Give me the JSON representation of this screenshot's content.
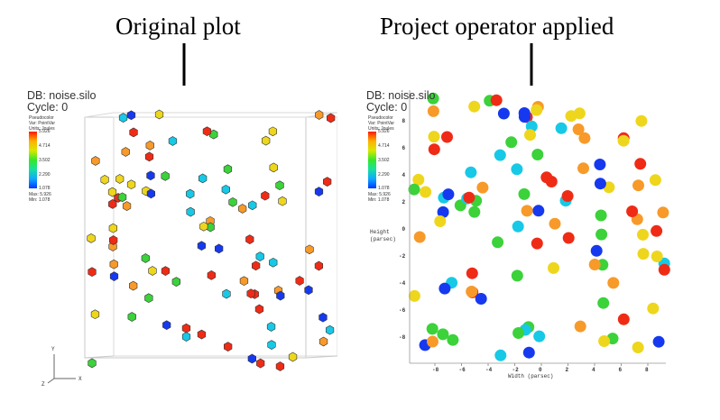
{
  "captions": {
    "left": "Original plot",
    "right": "Project operator applied"
  },
  "left_panel": {
    "db_label": "DB: noise.silo",
    "cycle_label": "Cycle: 0",
    "legend": {
      "title_lines": [
        "Pseudocolor",
        "Var: PointVar",
        "Units: Joules"
      ],
      "ticks": [
        "5.926",
        "4.714",
        "3.502",
        "2.290",
        "1.078"
      ],
      "max_label": "Max: 5.926",
      "min_label": "Min: 1.078"
    },
    "triad": {
      "y": "Y",
      "x": "X",
      "z": "Z"
    }
  },
  "right_panel": {
    "db_label": "DB: noise.silo",
    "cycle_label": "Cycle: 0",
    "legend": {
      "title_lines": [
        "Pseudocolor",
        "Var: PointVar",
        "Units: Joules"
      ],
      "ticks": [
        "5.926",
        "4.714",
        "3.502",
        "2.290",
        "1.078"
      ],
      "max_label": "Max: 5.926",
      "min_label": "Min: 1.078"
    },
    "xlabel": "Width (parsec)",
    "ylabel_lines": [
      "Height",
      "(parsec)"
    ],
    "xticks": [
      "-8",
      "-6",
      "-4",
      "-2",
      "0",
      "2",
      "4",
      "6",
      "8"
    ],
    "yticks": [
      "8",
      "6",
      "4",
      "2",
      "0",
      "-2",
      "-4",
      "-6",
      "-8"
    ]
  },
  "colors": {
    "red": "#ef2b16",
    "orange": "#f79a2a",
    "yellow": "#eed61c",
    "green": "#3bd23a",
    "cyan": "#17c9e6",
    "blue": "#1639ef"
  }
}
